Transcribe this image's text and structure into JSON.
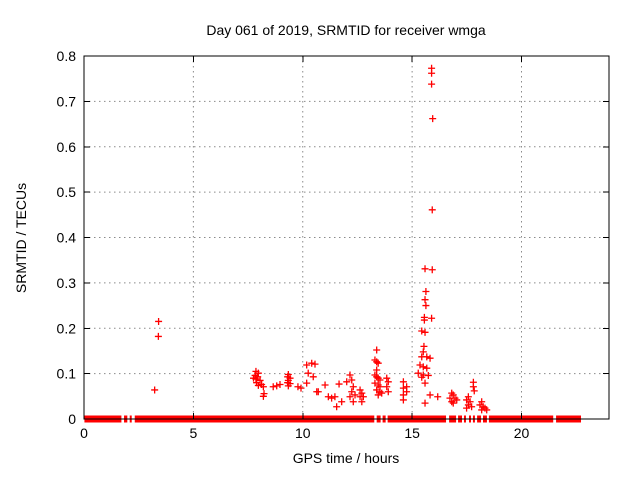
{
  "window": {
    "background": "#ffffff"
  },
  "chart_data": {
    "type": "scatter",
    "title": "Day 061 of 2019, SRMTID for receiver wmga",
    "xlabel": "GPS time / hours",
    "ylabel": "SRMTID / TECUs",
    "xlim": [
      0,
      24
    ],
    "ylim": [
      0,
      0.8
    ],
    "xticks": [
      {
        "v": 0,
        "label": "0"
      },
      {
        "v": 5,
        "label": "5"
      },
      {
        "v": 10,
        "label": "10"
      },
      {
        "v": 15,
        "label": "15"
      },
      {
        "v": 20,
        "label": "20"
      }
    ],
    "yticks": [
      {
        "v": 0.0,
        "label": "0"
      },
      {
        "v": 0.1,
        "label": "0.1"
      },
      {
        "v": 0.2,
        "label": "0.2"
      },
      {
        "v": 0.3,
        "label": "0.3"
      },
      {
        "v": 0.4,
        "label": "0.4"
      },
      {
        "v": 0.5,
        "label": "0.5"
      },
      {
        "v": 0.6,
        "label": "0.6"
      },
      {
        "v": 0.7,
        "label": "0.7"
      },
      {
        "v": 0.8,
        "label": "0.8"
      }
    ],
    "grid": true,
    "legend": null,
    "marker": "plus",
    "marker_color": "#ff0000",
    "frame_color": "#000000",
    "grid_color": "#8a8a8a",
    "baseline_y": 0,
    "baseline_segments": [
      [
        0.02,
        1.71
      ],
      [
        1.83,
        1.98
      ],
      [
        2.09,
        2.18
      ],
      [
        2.32,
        13.27
      ],
      [
        13.38,
        13.56
      ],
      [
        13.65,
        13.79
      ],
      [
        13.88,
        16.55
      ],
      [
        16.69,
        17.01
      ],
      [
        17.1,
        17.28
      ],
      [
        17.37,
        17.46
      ],
      [
        17.6,
        17.69
      ],
      [
        17.78,
        17.87
      ],
      [
        17.97,
        18.15
      ],
      [
        18.24,
        18.42
      ],
      [
        18.51,
        21.45
      ],
      [
        21.58,
        22.72
      ]
    ],
    "points": [
      [
        3.41,
        0.215
      ],
      [
        3.4,
        0.182
      ],
      [
        3.23,
        0.064
      ],
      [
        7.75,
        0.09
      ],
      [
        7.82,
        0.096
      ],
      [
        7.86,
        0.105
      ],
      [
        7.86,
        0.088
      ],
      [
        7.89,
        0.08
      ],
      [
        7.94,
        0.093
      ],
      [
        7.97,
        0.101
      ],
      [
        7.97,
        0.074
      ],
      [
        8.05,
        0.085
      ],
      [
        8.12,
        0.076
      ],
      [
        8.2,
        0.071
      ],
      [
        8.2,
        0.05
      ],
      [
        8.23,
        0.056
      ],
      [
        8.65,
        0.071
      ],
      [
        8.81,
        0.073
      ],
      [
        8.96,
        0.076
      ],
      [
        9.78,
        0.071
      ],
      [
        9.92,
        0.068
      ],
      [
        9.31,
        0.093
      ],
      [
        9.31,
        0.08
      ],
      [
        9.34,
        0.098
      ],
      [
        9.34,
        0.085
      ],
      [
        9.34,
        0.073
      ],
      [
        9.42,
        0.09
      ],
      [
        9.42,
        0.078
      ],
      [
        10.18,
        0.119
      ],
      [
        10.18,
        0.079
      ],
      [
        10.25,
        0.101
      ],
      [
        10.41,
        0.123
      ],
      [
        10.48,
        0.093
      ],
      [
        10.56,
        0.121
      ],
      [
        10.64,
        0.06
      ],
      [
        10.71,
        0.06
      ],
      [
        11.02,
        0.075
      ],
      [
        11.17,
        0.049
      ],
      [
        11.32,
        0.046
      ],
      [
        11.47,
        0.049
      ],
      [
        11.55,
        0.027
      ],
      [
        11.66,
        0.077
      ],
      [
        11.78,
        0.038
      ],
      [
        12.01,
        0.082
      ],
      [
        12.16,
        0.097
      ],
      [
        12.16,
        0.049
      ],
      [
        12.24,
        0.086
      ],
      [
        12.24,
        0.06
      ],
      [
        12.31,
        0.071
      ],
      [
        12.31,
        0.038
      ],
      [
        12.39,
        0.053
      ],
      [
        12.62,
        0.064
      ],
      [
        12.62,
        0.049
      ],
      [
        12.7,
        0.057
      ],
      [
        12.7,
        0.038
      ],
      [
        12.77,
        0.049
      ],
      [
        13.3,
        0.13
      ],
      [
        13.3,
        0.097
      ],
      [
        13.3,
        0.079
      ],
      [
        13.38,
        0.152
      ],
      [
        13.38,
        0.126
      ],
      [
        13.38,
        0.108
      ],
      [
        13.38,
        0.093
      ],
      [
        13.38,
        0.064
      ],
      [
        13.45,
        0.123
      ],
      [
        13.45,
        0.09
      ],
      [
        13.45,
        0.075
      ],
      [
        13.45,
        0.053
      ],
      [
        13.53,
        0.086
      ],
      [
        13.53,
        0.071
      ],
      [
        13.53,
        0.06
      ],
      [
        13.61,
        0.057
      ],
      [
        13.84,
        0.09
      ],
      [
        13.84,
        0.071
      ],
      [
        13.91,
        0.082
      ],
      [
        13.91,
        0.06
      ],
      [
        14.6,
        0.082
      ],
      [
        14.6,
        0.068
      ],
      [
        14.6,
        0.053
      ],
      [
        14.6,
        0.042
      ],
      [
        14.75,
        0.071
      ],
      [
        14.75,
        0.06
      ],
      [
        15.89,
        0.773
      ],
      [
        15.89,
        0.762
      ],
      [
        15.89,
        0.738
      ],
      [
        15.94,
        0.662
      ],
      [
        15.92,
        0.461
      ],
      [
        15.59,
        0.331
      ],
      [
        15.92,
        0.329
      ],
      [
        15.63,
        0.281
      ],
      [
        15.59,
        0.263
      ],
      [
        15.63,
        0.25
      ],
      [
        15.56,
        0.224
      ],
      [
        15.56,
        0.218
      ],
      [
        15.89,
        0.222
      ],
      [
        15.44,
        0.194
      ],
      [
        15.59,
        0.191
      ],
      [
        15.54,
        0.16
      ],
      [
        15.51,
        0.148
      ],
      [
        15.44,
        0.137
      ],
      [
        15.67,
        0.137
      ],
      [
        15.82,
        0.134
      ],
      [
        15.36,
        0.119
      ],
      [
        15.51,
        0.115
      ],
      [
        15.67,
        0.112
      ],
      [
        15.28,
        0.101
      ],
      [
        15.51,
        0.097
      ],
      [
        15.74,
        0.096
      ],
      [
        15.44,
        0.092
      ],
      [
        15.59,
        0.079
      ],
      [
        15.82,
        0.053
      ],
      [
        15.59,
        0.035
      ],
      [
        16.17,
        0.049
      ],
      [
        16.73,
        0.046
      ],
      [
        16.81,
        0.057
      ],
      [
        16.81,
        0.038
      ],
      [
        16.88,
        0.053
      ],
      [
        16.88,
        0.035
      ],
      [
        16.96,
        0.046
      ],
      [
        17.04,
        0.042
      ],
      [
        17.8,
        0.081
      ],
      [
        17.8,
        0.071
      ],
      [
        17.84,
        0.062
      ],
      [
        17.49,
        0.042
      ],
      [
        17.49,
        0.024
      ],
      [
        17.57,
        0.049
      ],
      [
        17.57,
        0.031
      ],
      [
        17.65,
        0.038
      ],
      [
        17.72,
        0.027
      ],
      [
        18.1,
        0.031
      ],
      [
        18.18,
        0.038
      ],
      [
        18.18,
        0.02
      ],
      [
        18.25,
        0.027
      ],
      [
        18.33,
        0.024
      ],
      [
        18.41,
        0.02
      ]
    ]
  }
}
